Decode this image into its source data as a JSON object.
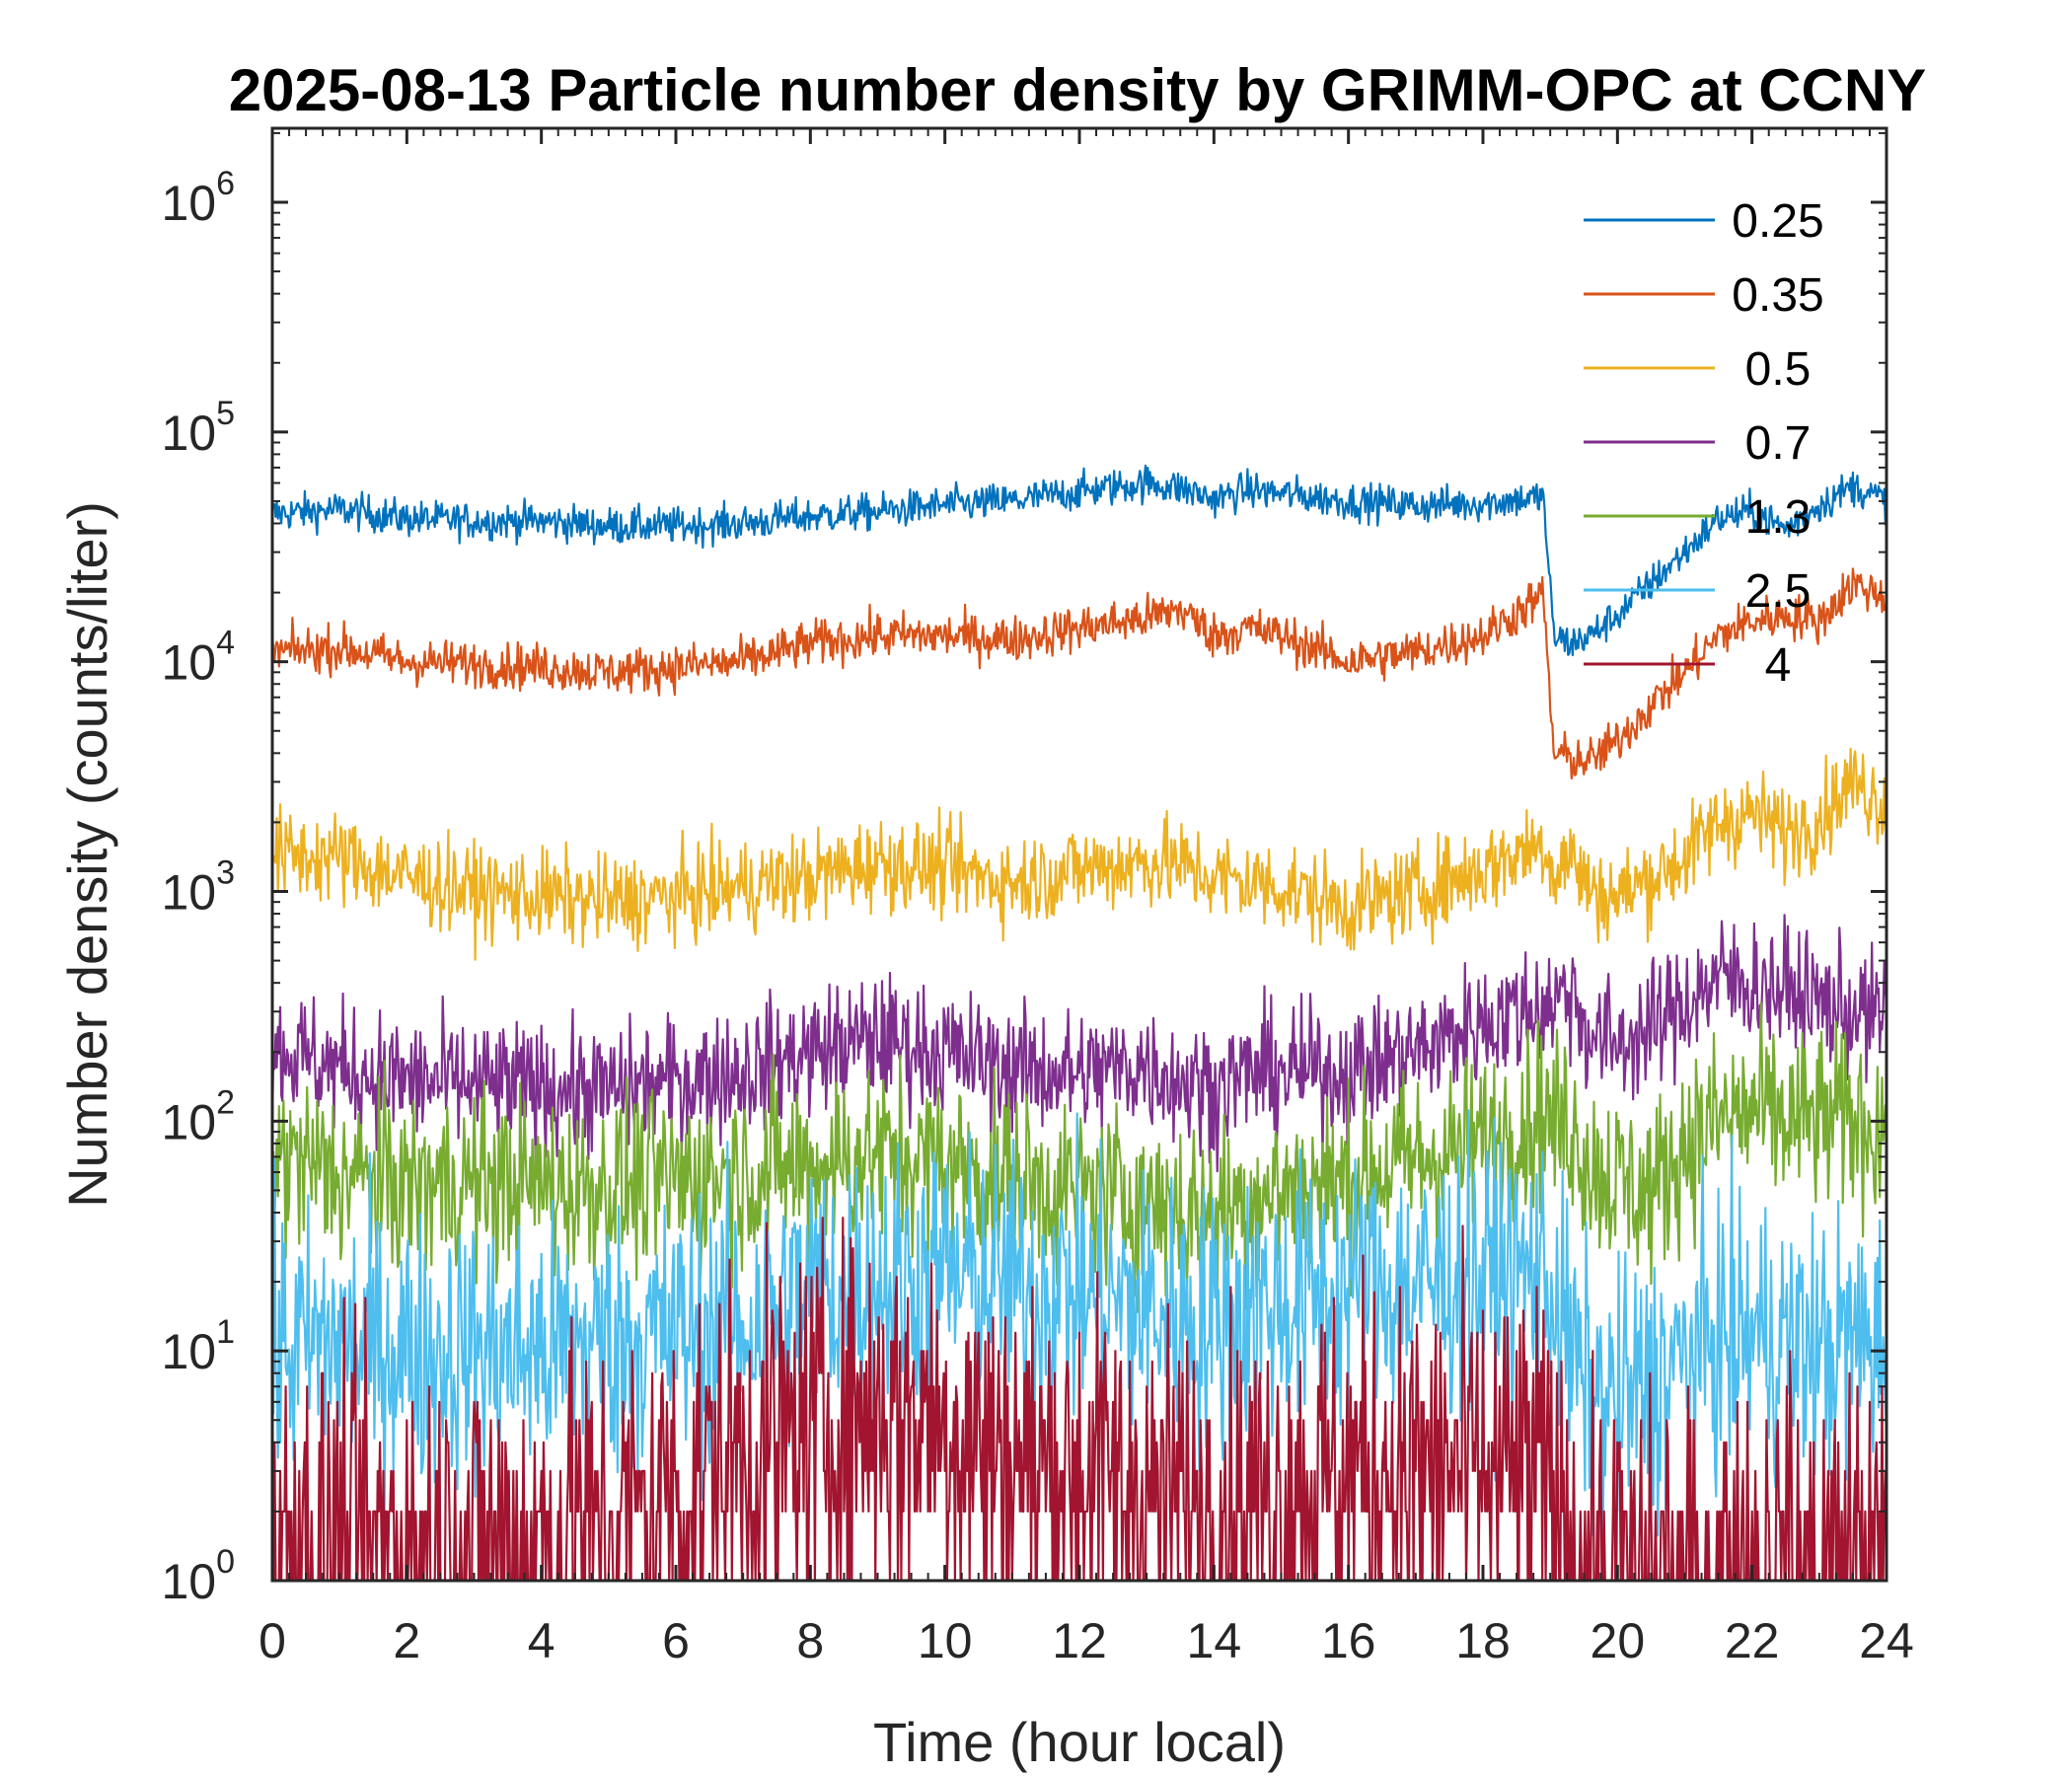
{
  "chart_data": {
    "type": "line",
    "title": "2025-08-13 Particle number density by GRIMM-OPC at CCNY",
    "xlabel": "Time (hour local)",
    "ylabel": "Number density (counts/liter)",
    "xlim": [
      0,
      24
    ],
    "ylim": [
      1,
      2000000
    ],
    "yscale": "log",
    "grid": false,
    "legend_position": "top-right",
    "x_ticks": [
      {
        "value": 0,
        "label": "0"
      },
      {
        "value": 2,
        "label": "2"
      },
      {
        "value": 4,
        "label": "4"
      },
      {
        "value": 6,
        "label": "6"
      },
      {
        "value": 8,
        "label": "8"
      },
      {
        "value": 10,
        "label": "10"
      },
      {
        "value": 12,
        "label": "12"
      },
      {
        "value": 14,
        "label": "14"
      },
      {
        "value": 16,
        "label": "16"
      },
      {
        "value": 18,
        "label": "18"
      },
      {
        "value": 20,
        "label": "20"
      },
      {
        "value": 22,
        "label": "22"
      },
      {
        "value": 24,
        "label": "24"
      }
    ],
    "y_ticks": [
      {
        "value": 1,
        "base": "10",
        "exp": "0"
      },
      {
        "value": 10,
        "base": "10",
        "exp": "1"
      },
      {
        "value": 100,
        "base": "10",
        "exp": "2"
      },
      {
        "value": 1000,
        "base": "10",
        "exp": "3"
      },
      {
        "value": 10000,
        "base": "10",
        "exp": "4"
      },
      {
        "value": 100000,
        "base": "10",
        "exp": "5"
      },
      {
        "value": 1000000,
        "base": "10",
        "exp": "6"
      }
    ],
    "series": [
      {
        "name": "0.25",
        "color": "#0072BD",
        "noise": 0.04,
        "x": [
          0,
          1,
          2,
          3,
          4,
          5,
          6,
          7,
          8,
          9,
          10,
          11,
          12,
          13,
          13.5,
          14,
          14.5,
          15,
          16,
          17,
          18,
          18.9,
          19.05,
          19.3,
          19.6,
          20,
          20.5,
          21,
          21.5,
          22,
          22.5,
          23,
          23.5,
          24
        ],
        "y": [
          44000,
          46000,
          42000,
          41000,
          41000,
          39000,
          39000,
          40000,
          43000,
          45000,
          48000,
          50000,
          55000,
          60000,
          57000,
          51000,
          56000,
          54000,
          50000,
          48000,
          49000,
          52000,
          13000,
          12000,
          13000,
          16000,
          22000,
          30000,
          42000,
          45000,
          38000,
          48000,
          58000,
          50000
        ]
      },
      {
        "name": "0.35",
        "color": "#D95319",
        "noise": 0.05,
        "x": [
          0,
          1,
          2,
          3,
          4,
          5,
          6,
          7,
          8,
          9,
          10,
          11,
          12,
          13,
          13.5,
          14,
          14.5,
          15,
          16,
          17,
          18,
          18.9,
          19.05,
          19.3,
          19.6,
          20,
          20.5,
          21,
          21.5,
          22,
          22.5,
          23,
          23.5,
          24
        ],
        "y": [
          11000,
          11500,
          10000,
          9800,
          9500,
          9000,
          9500,
          10000,
          12000,
          13000,
          13000,
          12500,
          14000,
          15500,
          17000,
          13000,
          14000,
          13000,
          10000,
          11000,
          13000,
          19500,
          4000,
          3800,
          3700,
          4500,
          6500,
          9000,
          13000,
          15000,
          16000,
          15000,
          22000,
          19000
        ]
      },
      {
        "name": "0.5",
        "color": "#EDB120",
        "noise": 0.1,
        "x": [
          0,
          1,
          2,
          3,
          4,
          5,
          6,
          7,
          8,
          9,
          10,
          11,
          12,
          13,
          13.5,
          14,
          14.5,
          15,
          16,
          17,
          18,
          18.9,
          19.05,
          19.3,
          19.6,
          20,
          20.5,
          21,
          21.5,
          22,
          22.5,
          23,
          23.5,
          24
        ],
        "y": [
          1450,
          1400,
          1150,
          1000,
          950,
          900,
          950,
          1050,
          1150,
          1350,
          1250,
          1100,
          1250,
          1350,
          1300,
          1150,
          1100,
          1050,
          850,
          1000,
          1250,
          1650,
          1200,
          1450,
          1000,
          950,
          1150,
          1400,
          2000,
          2200,
          1800,
          2100,
          3000,
          2400
        ]
      },
      {
        "name": "0.7",
        "color": "#7E2F8E",
        "noise": 0.14,
        "x": [
          0,
          1,
          2,
          3,
          4,
          5,
          6,
          7,
          8,
          9,
          10,
          11,
          12,
          13,
          13.5,
          14,
          14.5,
          15,
          16,
          17,
          18,
          18.9,
          19.05,
          19.3,
          19.6,
          20,
          20.5,
          21,
          21.5,
          22,
          22.5,
          23,
          23.5,
          24
        ],
        "y": [
          210,
          170,
          150,
          145,
          140,
          135,
          150,
          165,
          200,
          230,
          200,
          170,
          160,
          175,
          150,
          140,
          160,
          165,
          165,
          200,
          270,
          320,
          330,
          380,
          230,
          220,
          250,
          330,
          420,
          400,
          370,
          330,
          300,
          280
        ]
      },
      {
        "name": "1.3",
        "color": "#77AC30",
        "noise": 0.2,
        "x": [
          0,
          1,
          2,
          3,
          4,
          5,
          6,
          7,
          8,
          9,
          10,
          11,
          12,
          13,
          13.5,
          14,
          14.5,
          15,
          16,
          17,
          18,
          18.9,
          19.05,
          19.3,
          19.6,
          20,
          20.5,
          21,
          21.5,
          22,
          22.5,
          23,
          23.5,
          24
        ],
        "y": [
          70,
          58,
          52,
          55,
          52,
          52,
          55,
          60,
          65,
          72,
          65,
          55,
          50,
          45,
          42,
          40,
          45,
          50,
          55,
          68,
          80,
          110,
          95,
          100,
          65,
          55,
          48,
          80,
          100,
          110,
          100,
          100,
          100,
          95
        ]
      },
      {
        "name": "2.5",
        "color": "#4DBEEE",
        "noise": 0.3,
        "x": [
          0,
          1,
          2,
          3,
          4,
          5,
          6,
          7,
          8,
          9,
          10,
          11,
          12,
          13,
          13.5,
          14,
          14.5,
          15,
          16,
          17,
          18,
          18.9,
          19.05,
          19.3,
          19.6,
          20,
          20.5,
          21,
          21.5,
          22,
          22.5,
          23,
          23.5,
          24
        ],
        "y": [
          10,
          11,
          10,
          10,
          10,
          11,
          12,
          13,
          18,
          20,
          21,
          19,
          18,
          15,
          14,
          13,
          15,
          16,
          18,
          19,
          21,
          22,
          18,
          10,
          6,
          6,
          7,
          9,
          11,
          12,
          11,
          10,
          11,
          11
        ]
      },
      {
        "name": "4",
        "color": "#A2142F",
        "noise": 0.4,
        "x": [
          0,
          1,
          2,
          3,
          4,
          5,
          6,
          7,
          8,
          9,
          10,
          11,
          12,
          13,
          13.5,
          14,
          14.5,
          15,
          16,
          17,
          18,
          18.9,
          19.05,
          19.3,
          19.6,
          20,
          20.5,
          21,
          21.5,
          22,
          22.5,
          23,
          23.5,
          24
        ],
        "y": [
          1.5,
          1.5,
          1.5,
          1.5,
          1.6,
          1.8,
          2.5,
          3.5,
          4.5,
          5.5,
          5,
          3.5,
          3,
          2.5,
          2.2,
          2,
          2.2,
          2.5,
          3,
          3,
          3,
          3,
          2,
          1.2,
          1,
          1,
          1,
          1,
          1.1,
          1.2,
          1.2,
          1.2,
          1.3,
          1.3
        ]
      }
    ]
  }
}
